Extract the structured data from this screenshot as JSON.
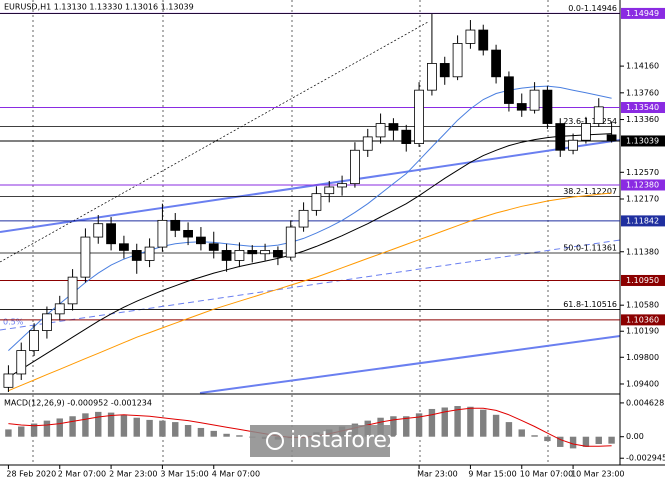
{
  "chart_data": {
    "type": "candlestick",
    "title": "EURUSD,H1  1.13130 1.13330 1.13016 1.13039",
    "categories": [
      "28 Feb 2020",
      null,
      null,
      null,
      "2 Mar 07:00",
      null,
      null,
      null,
      "2 Mar 23:00",
      null,
      null,
      null,
      "3 Mar 15:00",
      null,
      null,
      null,
      "4 Mar 07:00",
      null,
      null,
      null,
      null,
      null,
      null,
      null,
      null,
      null,
      null,
      null,
      null,
      null,
      null,
      null,
      "Mar 23:00",
      null,
      null,
      null,
      "9 Mar 15:00",
      null,
      null,
      null,
      "10 Mar 07:00",
      null,
      null,
      null,
      "10 Mar 23:00",
      null,
      null,
      null
    ],
    "candles": [
      [
        1.0935,
        1.0968,
        1.0928,
        1.0955
      ],
      [
        1.0955,
        1.1002,
        1.0946,
        1.099
      ],
      [
        1.099,
        1.1031,
        1.0982,
        1.102
      ],
      [
        1.102,
        1.1056,
        1.1008,
        1.1045
      ],
      [
        1.1045,
        1.1072,
        1.1035,
        1.106
      ],
      [
        1.106,
        1.1112,
        1.105,
        1.11
      ],
      [
        1.11,
        1.1173,
        1.1092,
        1.116
      ],
      [
        1.116,
        1.1193,
        1.115,
        1.118
      ],
      [
        1.118,
        1.119,
        1.114,
        1.115
      ],
      [
        1.115,
        1.1162,
        1.1128,
        1.114
      ],
      [
        1.114,
        1.115,
        1.1105,
        1.1125
      ],
      [
        1.1125,
        1.1158,
        1.1115,
        1.1145
      ],
      [
        1.1145,
        1.121,
        1.1138,
        1.1185
      ],
      [
        1.1185,
        1.1196,
        1.116,
        1.117
      ],
      [
        1.117,
        1.1182,
        1.1148,
        1.116
      ],
      [
        1.116,
        1.1175,
        1.114,
        1.115
      ],
      [
        1.115,
        1.1168,
        1.1128,
        1.114
      ],
      [
        1.114,
        1.115,
        1.1108,
        1.1125
      ],
      [
        1.1125,
        1.1152,
        1.1115,
        1.114
      ],
      [
        1.114,
        1.1148,
        1.1122,
        1.1135
      ],
      [
        1.1135,
        1.115,
        1.1125,
        1.114
      ],
      [
        1.114,
        1.1146,
        1.1118,
        1.113
      ],
      [
        1.113,
        1.1185,
        1.1125,
        1.1175
      ],
      [
        1.1175,
        1.1212,
        1.1168,
        1.12
      ],
      [
        1.12,
        1.1236,
        1.1192,
        1.1225
      ],
      [
        1.1225,
        1.1244,
        1.1212,
        1.1235
      ],
      [
        1.1235,
        1.1252,
        1.1222,
        1.124
      ],
      [
        1.124,
        1.1302,
        1.1234,
        1.129
      ],
      [
        1.129,
        1.1322,
        1.128,
        1.131
      ],
      [
        1.131,
        1.1345,
        1.13,
        1.133
      ],
      [
        1.133,
        1.1338,
        1.1305,
        1.132
      ],
      [
        1.132,
        1.1328,
        1.1288,
        1.13
      ],
      [
        1.13,
        1.1392,
        1.1295,
        1.138
      ],
      [
        1.138,
        1.14946,
        1.1372,
        1.142
      ],
      [
        1.142,
        1.143,
        1.1388,
        1.14
      ],
      [
        1.14,
        1.1462,
        1.1395,
        1.145
      ],
      [
        1.145,
        1.1485,
        1.1442,
        1.147
      ],
      [
        1.147,
        1.1478,
        1.1432,
        1.144
      ],
      [
        1.144,
        1.1448,
        1.139,
        1.14
      ],
      [
        1.14,
        1.1408,
        1.1348,
        1.136
      ],
      [
        1.136,
        1.1375,
        1.134,
        1.135
      ],
      [
        1.135,
        1.1392,
        1.1345,
        1.138
      ],
      [
        1.138,
        1.1386,
        1.1322,
        1.133
      ],
      [
        1.133,
        1.1338,
        1.128,
        1.129
      ],
      [
        1.129,
        1.1315,
        1.1284,
        1.1305
      ],
      [
        1.1305,
        1.134,
        1.13,
        1.133
      ],
      [
        1.133,
        1.1368,
        1.1325,
        1.1355
      ],
      [
        1.1313,
        1.1333,
        1.13016,
        1.13039
      ]
    ],
    "moving_averages": [
      {
        "color": "#ff9900",
        "values": [
          1.093,
          1.0938,
          1.0946,
          1.0954,
          1.0962,
          1.097,
          1.0978,
          1.0986,
          1.0994,
          1.1002,
          1.101,
          1.1017,
          1.1024,
          1.1031,
          1.1038,
          1.1045,
          1.1052,
          1.1058,
          1.1064,
          1.107,
          1.1076,
          1.1082,
          1.1088,
          1.1094,
          1.11,
          1.1107,
          1.1114,
          1.1121,
          1.1128,
          1.1135,
          1.1142,
          1.1149,
          1.1156,
          1.1163,
          1.117,
          1.1177,
          1.1184,
          1.119,
          1.1196,
          1.1201,
          1.1206,
          1.121,
          1.1214,
          1.1217,
          1.122,
          1.1222,
          1.1224,
          1.1226
        ]
      },
      {
        "color": "#000000",
        "values": [
          1.095,
          1.0962,
          1.0974,
          1.0986,
          1.0998,
          1.101,
          1.1022,
          1.1034,
          1.1045,
          1.1055,
          1.1064,
          1.1072,
          1.108,
          1.1087,
          1.1094,
          1.11,
          1.1106,
          1.1111,
          1.1116,
          1.112,
          1.1124,
          1.1128,
          1.1133,
          1.1139,
          1.1146,
          1.1154,
          1.1162,
          1.1171,
          1.118,
          1.119,
          1.12,
          1.121,
          1.1222,
          1.1235,
          1.1248,
          1.126,
          1.1272,
          1.1282,
          1.129,
          1.1297,
          1.1302,
          1.1306,
          1.1309,
          1.1311,
          1.1312,
          1.1313,
          1.1314,
          1.1315
        ]
      },
      {
        "color": "#4a7fe0",
        "values": [
          1.099,
          1.1008,
          1.1026,
          1.1044,
          1.106,
          1.1076,
          1.1092,
          1.1106,
          1.1118,
          1.1127,
          1.1134,
          1.114,
          1.1146,
          1.115,
          1.1152,
          1.1153,
          1.1152,
          1.115,
          1.1148,
          1.1146,
          1.1146,
          1.1148,
          1.1152,
          1.1158,
          1.1166,
          1.1175,
          1.1185,
          1.1197,
          1.121,
          1.1225,
          1.124,
          1.1255,
          1.1275,
          1.1295,
          1.1315,
          1.1335,
          1.1352,
          1.1366,
          1.1375,
          1.138,
          1.1383,
          1.1385,
          1.1386,
          1.1384,
          1.138,
          1.1376,
          1.1372,
          1.1368
        ]
      }
    ],
    "ylim": [
      1.0925,
      1.1515
    ],
    "yticks": [
      {
        "value": 1.1416,
        "label": "1.14160"
      },
      {
        "value": 1.1376,
        "label": "1.13760"
      },
      {
        "value": 1.1336,
        "label": "1.13360"
      },
      {
        "value": 1.1257,
        "label": "1.12570"
      },
      {
        "value": 1.1217,
        "label": "1.12170"
      },
      {
        "value": 1.1138,
        "label": "1.11380"
      },
      {
        "value": 1.1058,
        "label": "1.10580"
      },
      {
        "value": 1.1019,
        "label": "1.10190"
      },
      {
        "value": 1.098,
        "label": "1.09800"
      },
      {
        "value": 1.094,
        "label": "1.09400"
      }
    ],
    "grid": false,
    "levels": [
      {
        "value": 1.14949,
        "label": "1.14949",
        "color": "#8a2be2"
      },
      {
        "value": 1.1354,
        "label": "1.13540",
        "color": "#8a2be2"
      },
      {
        "value": 1.13039,
        "label": "1.13039",
        "color": "#000000"
      },
      {
        "value": 1.1238,
        "label": "1.12380",
        "color": "#8a2be2"
      },
      {
        "value": 1.11842,
        "label": "1.11842",
        "color": "#1f2f9f"
      },
      {
        "value": 1.1095,
        "label": "1.10950",
        "color": "#8b0000"
      },
      {
        "value": 1.1036,
        "label": "1.10360",
        "color": "#8b0000"
      }
    ],
    "fib_levels": [
      {
        "value": 1.14946,
        "label": "0.0-1.14946"
      },
      {
        "value": 1.13254,
        "label": "23.6-1.13254"
      },
      {
        "value": 1.12207,
        "label": "38.2-1.12207"
      },
      {
        "value": 1.11361,
        "label": "50.0-1.11361"
      },
      {
        "value": 1.10516,
        "label": "61.8-1.10516"
      }
    ],
    "annotation": "0.5%",
    "macd": {
      "label": "MACD(12,26,9) -0.000952 -0.001234",
      "ylim": [
        -0.0036,
        0.0053
      ],
      "yticks": [
        {
          "value": 0.004628,
          "label": "0.004628"
        },
        {
          "value": 0,
          "label": "0.00"
        },
        {
          "value": -0.002945,
          "label": "-0.002945"
        }
      ],
      "histogram": {
        "color": "#808080",
        "values": [
          0.001,
          0.0014,
          0.0018,
          0.0022,
          0.0025,
          0.0028,
          0.0032,
          0.0034,
          0.0033,
          0.003,
          0.0026,
          0.0023,
          0.0022,
          0.002,
          0.0016,
          0.0012,
          0.0008,
          0.0004,
          0.0002,
          -0.0001,
          -0.0003,
          -0.0004,
          -0.0002,
          0.0002,
          0.0006,
          0.001,
          0.0014,
          0.0018,
          0.0022,
          0.0026,
          0.0028,
          0.0028,
          0.0032,
          0.0038,
          0.004,
          0.0042,
          0.0041,
          0.0037,
          0.003,
          0.002,
          0.001,
          0.0002,
          -0.0006,
          -0.0014,
          -0.0016,
          -0.0014,
          -0.001,
          -0.000952
        ]
      },
      "signal": {
        "color": "#e00000",
        "values": [
          0.0018,
          0.0016,
          0.0015,
          0.0016,
          0.0018,
          0.0021,
          0.0024,
          0.0027,
          0.0029,
          0.003,
          0.0029,
          0.0028,
          0.0026,
          0.0024,
          0.0022,
          0.0019,
          0.0016,
          0.0013,
          0.001,
          0.0007,
          0.0004,
          0.0001,
          -0.0001,
          -0.0001,
          0.0001,
          0.0004,
          0.0008,
          0.0012,
          0.0016,
          0.002,
          0.0023,
          0.0025,
          0.0027,
          0.003,
          0.0034,
          0.0037,
          0.0039,
          0.0039,
          0.0036,
          0.003,
          0.0022,
          0.0014,
          0.0005,
          -0.0004,
          -0.001,
          -0.0013,
          -0.0013,
          -0.001234
        ]
      }
    },
    "watermark": "instaforex"
  }
}
